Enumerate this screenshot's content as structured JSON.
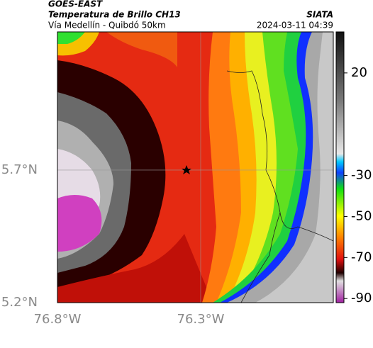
{
  "header": {
    "source": "GOES-EAST",
    "title": "Temperatura de Brillo CH13",
    "subtitle": "Vía Medellín - Quibdó 50km",
    "org": "SIATA",
    "timestamp": "2024-03-11 04:39"
  },
  "map": {
    "xlim": [
      -76.8,
      -75.837
    ],
    "ylim": [
      5.2,
      6.221
    ],
    "xticks": [
      {
        "value": -76.8,
        "label": "76.8°W"
      },
      {
        "value": -76.3,
        "label": "76.3°W"
      }
    ],
    "yticks": [
      {
        "value": 5.2,
        "label": "5.2°N"
      },
      {
        "value": 5.7,
        "label": "5.7°N"
      }
    ],
    "grid": true
  },
  "colorbar": {
    "lim": [
      40,
      -92
    ],
    "ticks": [
      20,
      -30,
      -50,
      -70,
      -90
    ]
  }
}
